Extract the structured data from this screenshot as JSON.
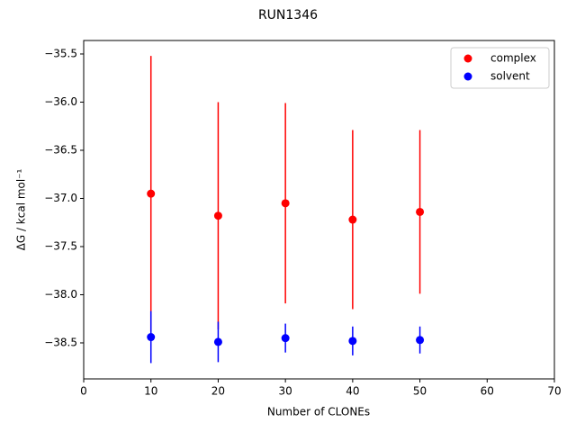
{
  "chart_data": {
    "type": "errorbar-scatter",
    "title": "RUN1346",
    "xlabel": "Number of CLONEs",
    "ylabel": "ΔG / kcal mol⁻¹",
    "x": [
      10,
      20,
      30,
      40,
      50
    ],
    "series": [
      {
        "name": "complex",
        "color": "#ff0000",
        "values": [
          -36.95,
          -37.18,
          -37.05,
          -37.22,
          -37.14
        ],
        "errors": [
          1.43,
          1.18,
          1.04,
          0.93,
          0.85
        ]
      },
      {
        "name": "solvent",
        "color": "#0000ff",
        "values": [
          -38.44,
          -38.49,
          -38.45,
          -38.48,
          -38.47
        ],
        "errors": [
          0.27,
          0.21,
          0.15,
          0.15,
          0.14
        ]
      }
    ],
    "xlim": [
      0,
      70
    ],
    "xticks": [
      0,
      10,
      20,
      30,
      40,
      50,
      60,
      70
    ],
    "ylim": [
      -38.874,
      -35.36
    ],
    "yticks": [
      {
        "value": -35.5,
        "label": "−35.5"
      },
      {
        "value": -36.0,
        "label": "−36.0"
      },
      {
        "value": -36.5,
        "label": "−36.5"
      },
      {
        "value": -37.0,
        "label": "−37.0"
      },
      {
        "value": -37.5,
        "label": "−37.5"
      },
      {
        "value": -38.0,
        "label": "−38.0"
      },
      {
        "value": -38.5,
        "label": "−38.5"
      }
    ],
    "legend": "upper right",
    "grid": false
  }
}
